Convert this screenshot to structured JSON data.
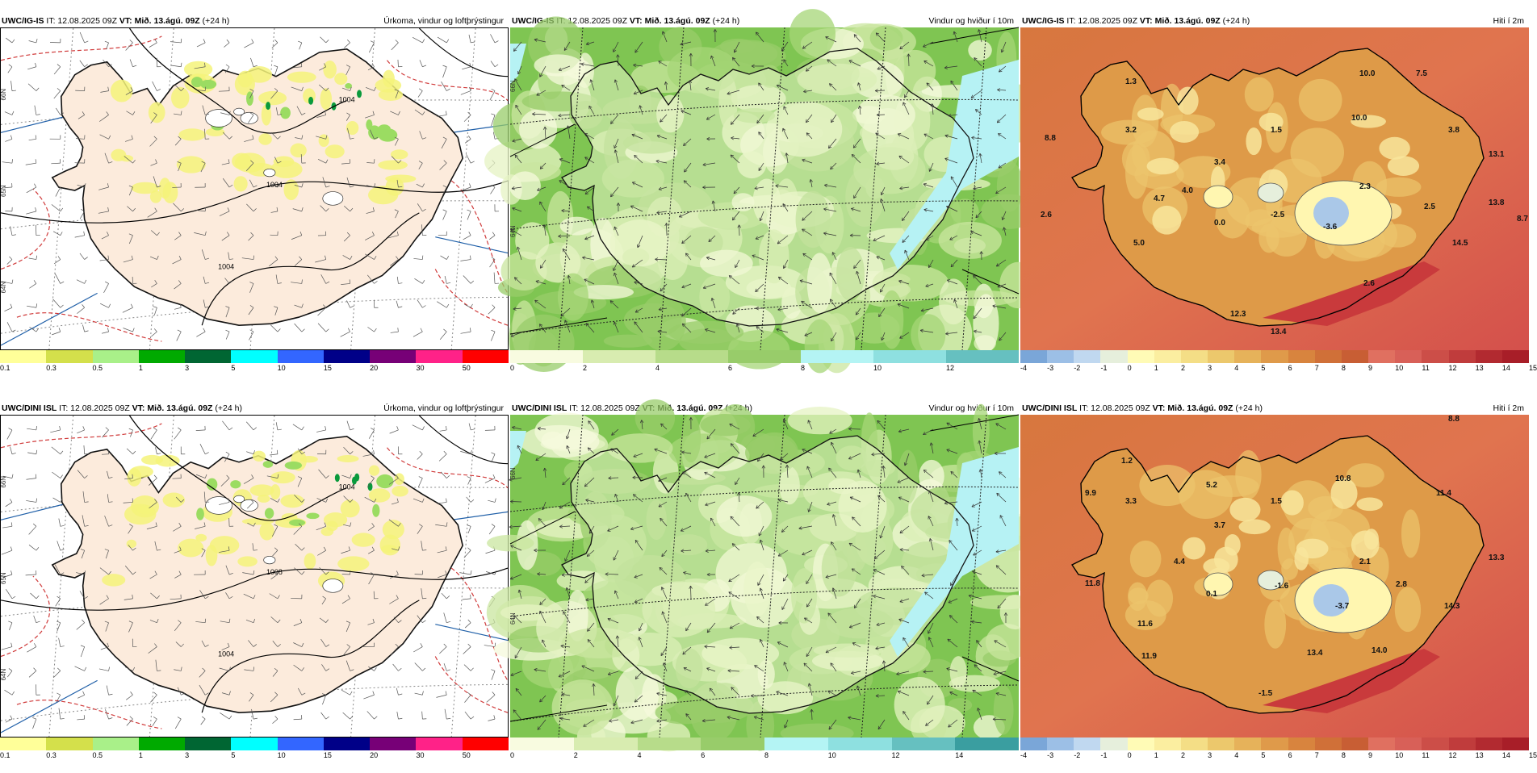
{
  "panels": [
    {
      "id": "p1",
      "header": {
        "model": "UWC/IG-IS",
        "it": "IT: 12.08.2025 09Z",
        "vt": "VT: Mið. 13.ágú. 09Z",
        "lead": "(+24 h)",
        "title": "Úrkoma, vindur og loftþrýstingur"
      },
      "map_type": "precip",
      "lat_labels": [
        "66N",
        "65N",
        "64N"
      ],
      "isobars": [
        "1004",
        "1004",
        "1004"
      ],
      "colorbar": {
        "colors": [
          "#ffff99",
          "#d4e04b",
          "#a9f089",
          "#00aa00",
          "#006633",
          "#00ffff",
          "#3366ff",
          "#000088",
          "#770077",
          "#ff2288",
          "#ff0000"
        ],
        "ticks": [
          "0.1",
          "0.3",
          "0.5",
          "1",
          "3",
          "5",
          "10",
          "15",
          "20",
          "30",
          "50"
        ]
      }
    },
    {
      "id": "p2",
      "header": {
        "model": "UWC/IG-IS",
        "it": "IT: 12.08.2025 09Z",
        "vt": "VT: Mið. 13.ágú. 09Z",
        "lead": "(+24 h)",
        "title": "Vindur og hviður í 10m"
      },
      "map_type": "wind",
      "lat_labels": [
        "66N",
        "64N"
      ],
      "colorbar": {
        "colors": [
          "#f8fbe0",
          "#d8ecb0",
          "#b7dc8a",
          "#98cc6a",
          "#b4f4f4",
          "#8ee0e0",
          "#66c0c0"
        ],
        "ticks": [
          "0",
          "2",
          "4",
          "6",
          "8",
          "10",
          "12"
        ]
      }
    },
    {
      "id": "p3",
      "header": {
        "model": "UWC/IG-IS",
        "it": "IT: 12.08.2025 09Z",
        "vt": "VT: Mið. 13.ágú. 09Z",
        "lead": "(+24 h)",
        "title": "Hiti í 2m"
      },
      "map_type": "temp",
      "temp_labels": [
        {
          "t": "1.3"
        },
        {
          "t": "10.0"
        },
        {
          "t": "7.5"
        },
        {
          "t": "8.8"
        },
        {
          "t": "3.2"
        },
        {
          "t": "1.5"
        },
        {
          "t": "10.0"
        },
        {
          "t": "3.8"
        },
        {
          "t": "13.1"
        },
        {
          "t": "3.4"
        },
        {
          "t": "2.3"
        },
        {
          "t": "4.0"
        },
        {
          "t": "4.7"
        },
        {
          "t": "2.6"
        },
        {
          "t": "0.0"
        },
        {
          "t": "-2.5"
        },
        {
          "t": "2.5"
        },
        {
          "t": "13.8"
        },
        {
          "t": "8.7"
        },
        {
          "t": "-3.6"
        },
        {
          "t": "5.0"
        },
        {
          "t": "14.5"
        },
        {
          "t": "2.6"
        },
        {
          "t": "12.3"
        },
        {
          "t": "13.4"
        }
      ],
      "colorbar": {
        "colors": [
          "#7aa6d8",
          "#9cbfe6",
          "#c0d8f0",
          "#e6efdc",
          "#fffbb6",
          "#fbeea0",
          "#f4de86",
          "#ecc86c",
          "#e6b25a",
          "#df9a4a",
          "#d8843e",
          "#d07038",
          "#c85e34",
          "#e07060",
          "#d86058",
          "#cc4e48",
          "#c03c3c",
          "#b22a30",
          "#a81e28"
        ],
        "ticks": [
          "-4",
          "-3",
          "-2",
          "-1",
          "0",
          "1",
          "2",
          "3",
          "4",
          "5",
          "6",
          "7",
          "8",
          "9",
          "10",
          "11",
          "12",
          "13",
          "14",
          "15"
        ]
      }
    },
    {
      "id": "p4",
      "header": {
        "model": "UWC/DINI ISL",
        "it": "IT: 12.08.2025 09Z",
        "vt": "VT: Mið. 13.ágú. 09Z",
        "lead": "(+24 h)",
        "title": "Úrkoma, vindur og loftþrýstingur"
      },
      "map_type": "precip",
      "lat_labels": [
        "66N",
        "65N",
        "64N"
      ],
      "isobars": [
        "1008",
        "1004",
        "1004"
      ],
      "colorbar": {
        "colors": [
          "#ffff99",
          "#d4e04b",
          "#a9f089",
          "#00aa00",
          "#006633",
          "#00ffff",
          "#3366ff",
          "#000088",
          "#770077",
          "#ff2288",
          "#ff0000"
        ],
        "ticks": [
          "0.1",
          "0.3",
          "0.5",
          "1",
          "3",
          "5",
          "10",
          "15",
          "20",
          "30",
          "50"
        ]
      }
    },
    {
      "id": "p5",
      "header": {
        "model": "UWC/DINI ISL",
        "it": "IT: 12.08.2025 09Z",
        "vt": "VT: Mið. 13.ágú. 09Z",
        "lead": "(+24 h)",
        "title": "Vindur og hviður í 10m"
      },
      "map_type": "wind",
      "lat_labels": [
        "66N",
        "64N"
      ],
      "colorbar": {
        "colors": [
          "#f8fbe0",
          "#d8ecb0",
          "#b7dc8a",
          "#98cc6a",
          "#b4f4f4",
          "#8ee0e0",
          "#66c0c0",
          "#3a9ea0"
        ],
        "ticks": [
          "0",
          "2",
          "4",
          "6",
          "8",
          "10",
          "12",
          "14"
        ]
      }
    },
    {
      "id": "p6",
      "header": {
        "model": "UWC/DINI ISL",
        "it": "IT: 12.08.2025 09Z",
        "vt": "VT: Mið. 13.ágú. 09Z",
        "lead": "(+24 h)",
        "title": "Hiti í 2m"
      },
      "map_type": "temp",
      "temp_labels": [
        {
          "t": "8.8"
        },
        {
          "t": "1.2"
        },
        {
          "t": "9.9"
        },
        {
          "t": "3.3"
        },
        {
          "t": "5.2"
        },
        {
          "t": "1.5"
        },
        {
          "t": "10.8"
        },
        {
          "t": "11.4"
        },
        {
          "t": "3.7"
        },
        {
          "t": "13.3"
        },
        {
          "t": "4.4"
        },
        {
          "t": "2.1"
        },
        {
          "t": "11.8"
        },
        {
          "t": "0.1"
        },
        {
          "t": "-1.6"
        },
        {
          "t": "2.8"
        },
        {
          "t": "14.3"
        },
        {
          "t": "-3.7"
        },
        {
          "t": "11.6"
        },
        {
          "t": "11.9"
        },
        {
          "t": "13.4"
        },
        {
          "t": "14.0"
        },
        {
          "t": "-1.5"
        }
      ],
      "colorbar": {
        "colors": [
          "#7aa6d8",
          "#9cbfe6",
          "#c0d8f0",
          "#e6efdc",
          "#fffbb6",
          "#fbeea0",
          "#f4de86",
          "#ecc86c",
          "#e6b25a",
          "#df9a4a",
          "#d8843e",
          "#d07038",
          "#c85e34",
          "#e07060",
          "#d86058",
          "#cc4e48",
          "#c03c3c",
          "#b22a30",
          "#a81e28"
        ],
        "ticks": [
          "-4",
          "-3",
          "-2",
          "-1",
          "0",
          "1",
          "2",
          "3",
          "4",
          "5",
          "6",
          "7",
          "8",
          "9",
          "10",
          "11",
          "12",
          "13",
          "14",
          "15"
        ]
      }
    }
  ]
}
